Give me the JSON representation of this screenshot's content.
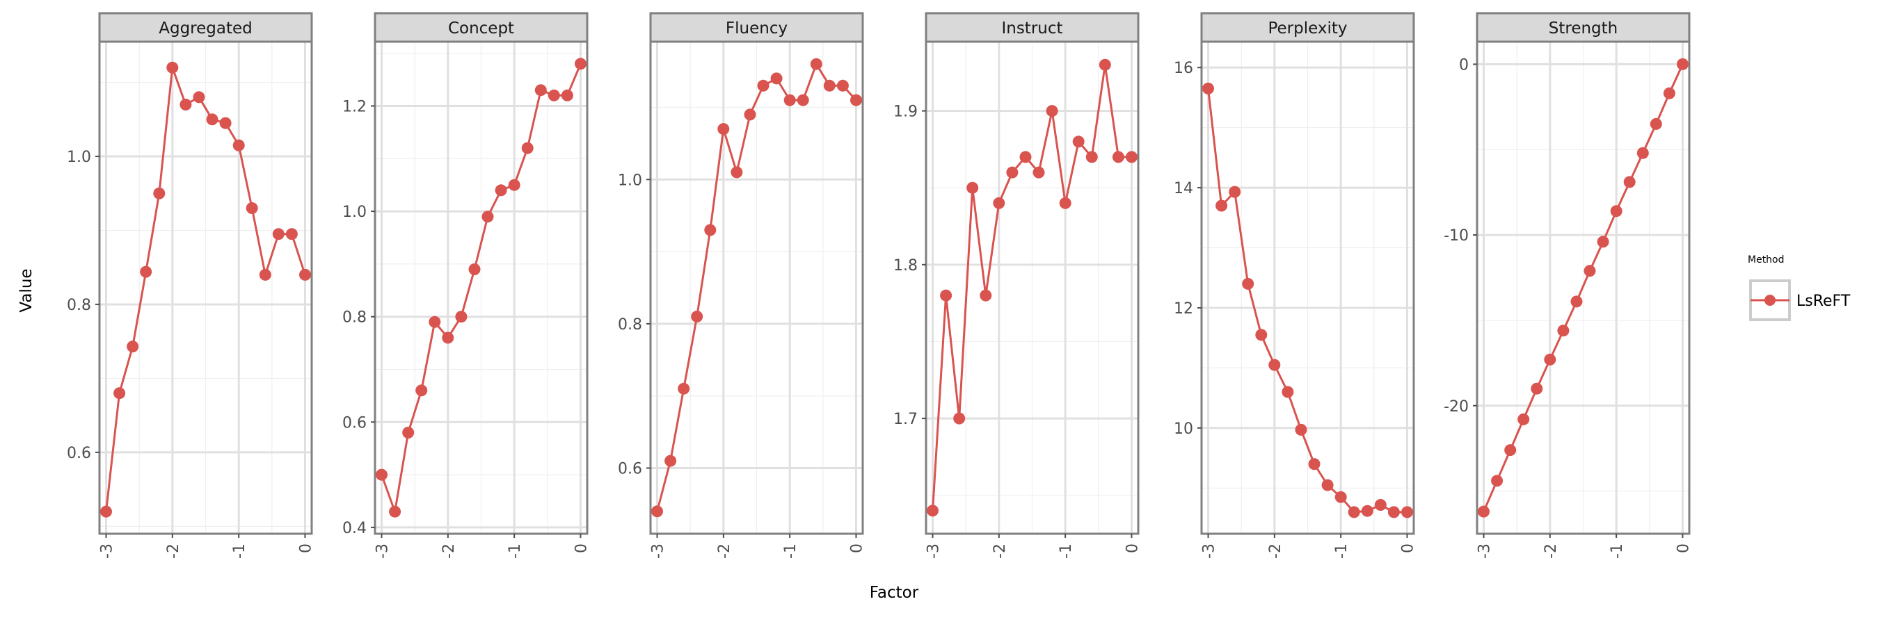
{
  "figure": {
    "xlabel": "Factor",
    "ylabel": "Value",
    "line_color": "#d9534f",
    "legend": {
      "title": "Method",
      "placement": "right",
      "entries": [
        "LsReFT"
      ]
    }
  },
  "chart_data": [
    {
      "type": "line",
      "panel": "Aggregated",
      "x": [
        -3.0,
        -2.8,
        -2.6,
        -2.4,
        -2.2,
        -2.0,
        -1.8,
        -1.6,
        -1.4,
        -1.2,
        -1.0,
        -0.8,
        -0.6,
        -0.4,
        -0.2,
        0.0
      ],
      "series": [
        {
          "name": "LsReFT",
          "values": [
            0.52,
            0.68,
            0.743,
            0.844,
            0.95,
            1.12,
            1.07,
            1.08,
            1.05,
            1.045,
            1.015,
            0.93,
            0.84,
            0.895,
            0.895,
            0.84
          ]
        }
      ],
      "xticks": [
        "-3",
        "-2",
        "-1",
        "0"
      ],
      "yticks": [
        0.6,
        0.8,
        1.0
      ],
      "ytick_labels": [
        "0.6",
        "0.8",
        "1.0"
      ],
      "xlim": [
        -3.1,
        0.1
      ],
      "ylim": [
        0.49,
        1.155
      ]
    },
    {
      "type": "line",
      "panel": "Concept",
      "x": [
        -3.0,
        -2.8,
        -2.6,
        -2.4,
        -2.2,
        -2.0,
        -1.8,
        -1.6,
        -1.4,
        -1.2,
        -1.0,
        -0.8,
        -0.6,
        -0.4,
        -0.2,
        0.0
      ],
      "series": [
        {
          "name": "LsReFT",
          "values": [
            0.5,
            0.43,
            0.58,
            0.66,
            0.79,
            0.76,
            0.8,
            0.89,
            0.99,
            1.04,
            1.05,
            1.12,
            1.23,
            1.22,
            1.22,
            1.28
          ]
        }
      ],
      "xticks": [
        "-3",
        "-2",
        "-1",
        "0"
      ],
      "yticks": [
        0.4,
        0.6,
        0.8,
        1.0,
        1.2
      ],
      "ytick_labels": [
        "0.4",
        "0.6",
        "0.8",
        "1.0",
        "1.2"
      ],
      "xlim": [
        -3.1,
        0.1
      ],
      "ylim": [
        0.388,
        1.322
      ]
    },
    {
      "type": "line",
      "panel": "Fluency",
      "x": [
        -3.0,
        -2.8,
        -2.6,
        -2.4,
        -2.2,
        -2.0,
        -1.8,
        -1.6,
        -1.4,
        -1.2,
        -1.0,
        -0.8,
        -0.6,
        -0.4,
        -0.2,
        0.0
      ],
      "series": [
        {
          "name": "LsReFT",
          "values": [
            0.54,
            0.61,
            0.71,
            0.81,
            0.93,
            1.07,
            1.01,
            1.09,
            1.13,
            1.14,
            1.11,
            1.11,
            1.16,
            1.13,
            1.13,
            1.11
          ]
        }
      ],
      "xticks": [
        "-3",
        "-2",
        "-1",
        "0"
      ],
      "yticks": [
        0.6,
        0.8,
        1.0
      ],
      "ytick_labels": [
        "0.6",
        "0.8",
        "1.0"
      ],
      "xlim": [
        -3.1,
        0.1
      ],
      "ylim": [
        0.509,
        1.191
      ]
    },
    {
      "type": "line",
      "panel": "Instruct",
      "x": [
        -3.0,
        -2.8,
        -2.6,
        -2.4,
        -2.2,
        -2.0,
        -1.8,
        -1.6,
        -1.4,
        -1.2,
        -1.0,
        -0.8,
        -0.6,
        -0.4,
        -0.2,
        0.0
      ],
      "series": [
        {
          "name": "LsReFT",
          "values": [
            1.64,
            1.78,
            1.7,
            1.85,
            1.78,
            1.84,
            1.86,
            1.87,
            1.86,
            1.9,
            1.84,
            1.88,
            1.87,
            1.93,
            1.87,
            1.87
          ]
        }
      ],
      "xticks": [
        "-3",
        "-2",
        "-1",
        "0"
      ],
      "yticks": [
        1.7,
        1.8,
        1.9
      ],
      "ytick_labels": [
        "1.7",
        "1.8",
        "1.9"
      ],
      "xlim": [
        -3.1,
        0.1
      ],
      "ylim": [
        1.625,
        1.945
      ]
    },
    {
      "type": "line",
      "panel": "Perplexity",
      "x": [
        -3.0,
        -2.8,
        -2.6,
        -2.4,
        -2.2,
        -2.0,
        -1.8,
        -1.6,
        -1.4,
        -1.2,
        -1.0,
        -0.8,
        -0.6,
        -0.4,
        -0.2,
        0.0
      ],
      "series": [
        {
          "name": "LsReFT",
          "values": [
            15.65,
            13.7,
            13.93,
            12.4,
            11.55,
            11.05,
            10.6,
            9.97,
            9.4,
            9.05,
            8.85,
            8.6,
            8.62,
            8.72,
            8.6,
            8.6
          ]
        }
      ],
      "xticks": [
        "-3",
        "-2",
        "-1",
        "0"
      ],
      "yticks": [
        10,
        12,
        14,
        16
      ],
      "ytick_labels": [
        "10",
        "12",
        "14",
        "16"
      ],
      "xlim": [
        -3.1,
        0.1
      ],
      "ylim": [
        8.24,
        16.43
      ]
    },
    {
      "type": "line",
      "panel": "Strength",
      "x": [
        -3.0,
        -2.8,
        -2.6,
        -2.4,
        -2.2,
        -2.0,
        -1.8,
        -1.6,
        -1.4,
        -1.2,
        -1.0,
        -0.8,
        -0.6,
        -0.4,
        -0.2,
        0.0
      ],
      "series": [
        {
          "name": "LsReFT",
          "values": [
            -26.2,
            -24.4,
            -22.6,
            -20.8,
            -19.0,
            -17.3,
            -15.6,
            -13.9,
            -12.1,
            -10.4,
            -8.6,
            -6.9,
            -5.2,
            -3.5,
            -1.7,
            0.0
          ]
        }
      ],
      "xticks": [
        "-3",
        "-2",
        "-1",
        "0"
      ],
      "yticks": [
        -20,
        -10,
        0
      ],
      "ytick_labels": [
        "-20",
        "-10",
        "0"
      ],
      "xlim": [
        -3.1,
        0.1
      ],
      "ylim": [
        -27.5,
        1.32
      ]
    }
  ]
}
